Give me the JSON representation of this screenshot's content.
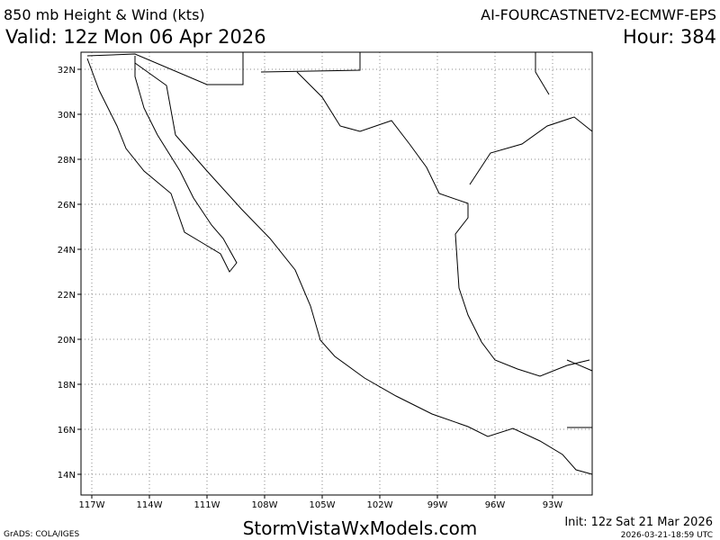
{
  "header": {
    "title": "850 mb Height & Wind (kts)",
    "model": "AI-FOURCASTNETV2-ECMWF-EPS",
    "valid": "Valid: 12z Mon 06 Apr 2026",
    "hour": "Hour: 384"
  },
  "map": {
    "lat_labels": [
      "32N",
      "30N",
      "28N",
      "26N",
      "24N",
      "22N",
      "20N",
      "18N",
      "16N",
      "14N"
    ],
    "lon_labels": [
      "117W",
      "114W",
      "111W",
      "108W",
      "105W",
      "102W",
      "99W",
      "96W",
      "93W"
    ]
  },
  "footer": {
    "credit": "GrADS: COLA/IGES",
    "site": "StormVistaWxModels.com",
    "init": "Init: 12z Sat 21 Mar 2026",
    "timestamp": "2026-03-21-18:59 UTC"
  }
}
